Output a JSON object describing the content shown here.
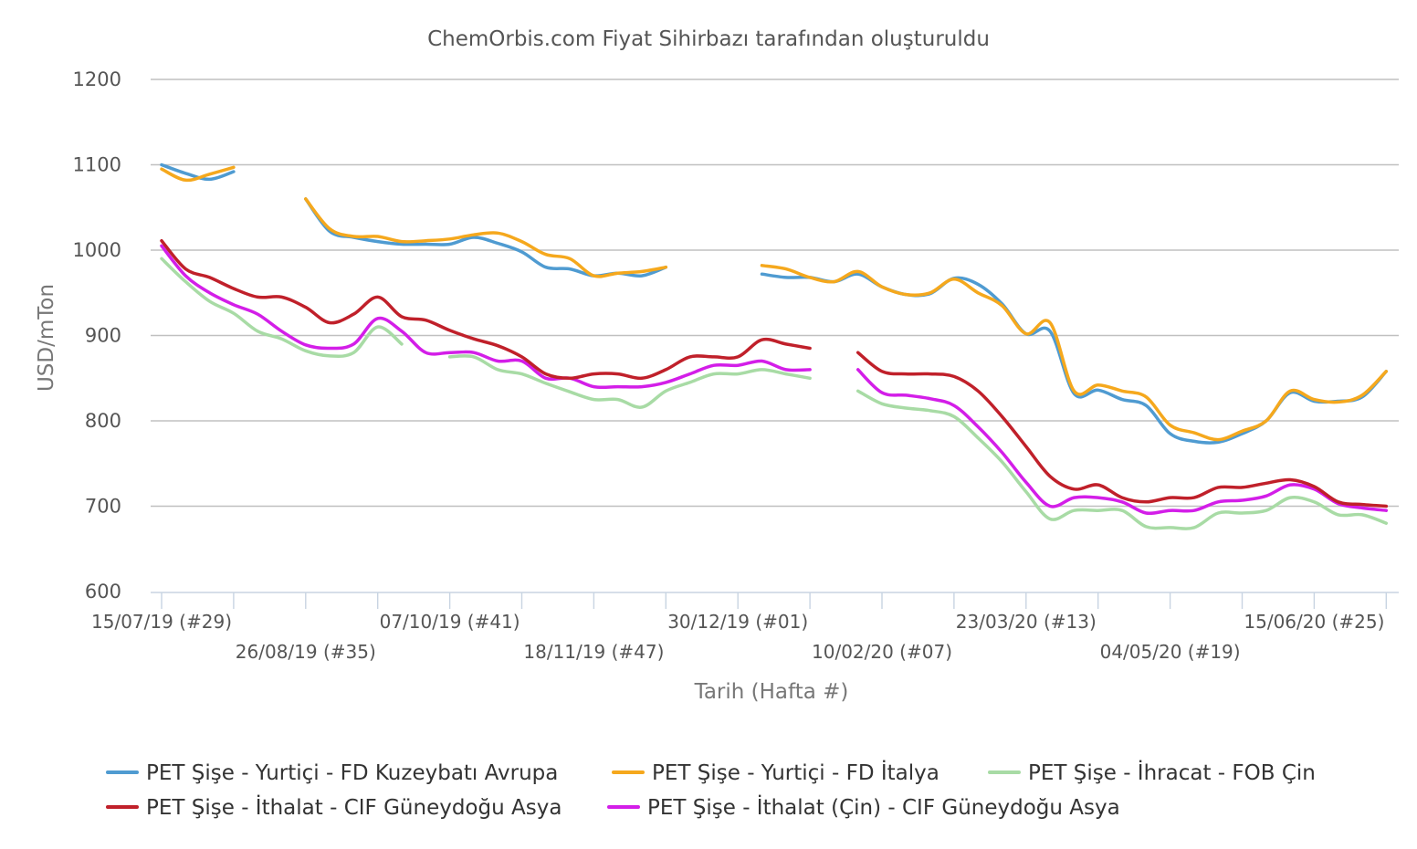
{
  "chart_data": {
    "type": "line",
    "title": "ChemOrbis.com Fiyat Sihirbazı tarafından oluşturuldu",
    "xlabel": "Tarih (Hafta #)",
    "ylabel": "USD/mTon",
    "ylim": [
      600,
      1200
    ],
    "yticks": [
      600,
      700,
      800,
      900,
      1000,
      1100,
      1200
    ],
    "grid": true,
    "legend_position": "bottom",
    "x_start_date": "15/07/19",
    "x_weeks": 52,
    "x_tick_labels": [
      {
        "week": 0,
        "label": "15/07/19 (#29)",
        "row": 0
      },
      {
        "week": 6,
        "label": "26/08/19 (#35)",
        "row": 1
      },
      {
        "week": 12,
        "label": "07/10/19 (#41)",
        "row": 0
      },
      {
        "week": 18,
        "label": "18/11/19 (#47)",
        "row": 1
      },
      {
        "week": 24,
        "label": "30/12/19 (#01)",
        "row": 0
      },
      {
        "week": 30,
        "label": "10/02/20 (#07)",
        "row": 1
      },
      {
        "week": 36,
        "label": "23/03/20 (#13)",
        "row": 0
      },
      {
        "week": 42,
        "label": "04/05/20 (#19)",
        "row": 1
      },
      {
        "week": 48,
        "label": "15/06/20 (#25)",
        "row": 0
      }
    ],
    "series": [
      {
        "name": "PET Şişe - Yurtiçi - FD Kuzeybatı Avrupa",
        "color": "#4f9bd1",
        "points": [
          [
            0,
            1100
          ],
          [
            1,
            1090
          ],
          [
            2,
            1083
          ],
          [
            3,
            1092
          ],
          [
            6,
            1060
          ],
          [
            7,
            1022
          ],
          [
            8,
            1015
          ],
          [
            9,
            1010
          ],
          [
            10,
            1007
          ],
          [
            11,
            1007
          ],
          [
            12,
            1007
          ],
          [
            13,
            1015
          ],
          [
            14,
            1008
          ],
          [
            15,
            998
          ],
          [
            16,
            980
          ],
          [
            17,
            978
          ],
          [
            18,
            970
          ],
          [
            19,
            973
          ],
          [
            20,
            970
          ],
          [
            21,
            980
          ],
          [
            25,
            972
          ],
          [
            26,
            968
          ],
          [
            27,
            968
          ],
          [
            28,
            963
          ],
          [
            29,
            972
          ],
          [
            30,
            957
          ],
          [
            31,
            948
          ],
          [
            32,
            949
          ],
          [
            33,
            967
          ],
          [
            34,
            960
          ],
          [
            35,
            937
          ],
          [
            36,
            902
          ],
          [
            37,
            905
          ],
          [
            38,
            832
          ],
          [
            39,
            836
          ],
          [
            40,
            825
          ],
          [
            41,
            818
          ],
          [
            42,
            785
          ],
          [
            43,
            776
          ],
          [
            44,
            775
          ],
          [
            45,
            785
          ],
          [
            46,
            800
          ],
          [
            47,
            833
          ],
          [
            48,
            823
          ],
          [
            49,
            823
          ],
          [
            50,
            828
          ],
          [
            51,
            858
          ]
        ]
      },
      {
        "name": "PET Şişe - Yurtiçi - FD İtalya",
        "color": "#f5a81d",
        "points": [
          [
            0,
            1095
          ],
          [
            1,
            1082
          ],
          [
            2,
            1089
          ],
          [
            3,
            1097
          ],
          [
            6,
            1060
          ],
          [
            7,
            1025
          ],
          [
            8,
            1016
          ],
          [
            9,
            1016
          ],
          [
            10,
            1010
          ],
          [
            11,
            1011
          ],
          [
            12,
            1013
          ],
          [
            13,
            1018
          ],
          [
            14,
            1020
          ],
          [
            15,
            1010
          ],
          [
            16,
            995
          ],
          [
            17,
            990
          ],
          [
            18,
            970
          ],
          [
            19,
            973
          ],
          [
            20,
            975
          ],
          [
            21,
            980
          ],
          [
            25,
            982
          ],
          [
            26,
            978
          ],
          [
            27,
            968
          ],
          [
            28,
            963
          ],
          [
            29,
            975
          ],
          [
            30,
            957
          ],
          [
            31,
            948
          ],
          [
            32,
            950
          ],
          [
            33,
            966
          ],
          [
            34,
            950
          ],
          [
            35,
            935
          ],
          [
            36,
            902
          ],
          [
            37,
            915
          ],
          [
            38,
            835
          ],
          [
            39,
            842
          ],
          [
            40,
            835
          ],
          [
            41,
            828
          ],
          [
            42,
            795
          ],
          [
            43,
            786
          ],
          [
            44,
            778
          ],
          [
            45,
            788
          ],
          [
            46,
            800
          ],
          [
            47,
            835
          ],
          [
            48,
            825
          ],
          [
            49,
            822
          ],
          [
            50,
            830
          ],
          [
            51,
            858
          ]
        ]
      },
      {
        "name": "PET Şişe - İhracat - FOB Çin",
        "color": "#a8dba5",
        "points": [
          [
            0,
            990
          ],
          [
            1,
            963
          ],
          [
            2,
            940
          ],
          [
            3,
            926
          ],
          [
            4,
            905
          ],
          [
            5,
            896
          ],
          [
            6,
            882
          ],
          [
            7,
            876
          ],
          [
            8,
            880
          ],
          [
            9,
            910
          ],
          [
            10,
            890
          ],
          [
            12,
            875
          ],
          [
            13,
            875
          ],
          [
            14,
            860
          ],
          [
            15,
            855
          ],
          [
            16,
            844
          ],
          [
            17,
            834
          ],
          [
            18,
            825
          ],
          [
            19,
            825
          ],
          [
            20,
            816
          ],
          [
            21,
            835
          ],
          [
            22,
            845
          ],
          [
            23,
            855
          ],
          [
            24,
            855
          ],
          [
            25,
            860
          ],
          [
            26,
            855
          ],
          [
            27,
            850
          ],
          [
            29,
            835
          ],
          [
            30,
            820
          ],
          [
            31,
            815
          ],
          [
            32,
            812
          ],
          [
            33,
            805
          ],
          [
            34,
            780
          ],
          [
            35,
            752
          ],
          [
            36,
            717
          ],
          [
            37,
            685
          ],
          [
            38,
            695
          ],
          [
            39,
            695
          ],
          [
            40,
            695
          ],
          [
            41,
            676
          ],
          [
            42,
            675
          ],
          [
            43,
            675
          ],
          [
            44,
            692
          ],
          [
            45,
            692
          ],
          [
            46,
            695
          ],
          [
            47,
            710
          ],
          [
            48,
            705
          ],
          [
            49,
            690
          ],
          [
            50,
            690
          ],
          [
            51,
            680
          ]
        ]
      },
      {
        "name": "PET Şişe - İthalat - CIF Güneydoğu Asya",
        "color": "#c0202a",
        "points": [
          [
            0,
            1011
          ],
          [
            1,
            978
          ],
          [
            2,
            968
          ],
          [
            3,
            955
          ],
          [
            4,
            945
          ],
          [
            5,
            945
          ],
          [
            6,
            933
          ],
          [
            7,
            915
          ],
          [
            8,
            925
          ],
          [
            9,
            945
          ],
          [
            10,
            922
          ],
          [
            11,
            918
          ],
          [
            12,
            906
          ],
          [
            13,
            896
          ],
          [
            14,
            888
          ],
          [
            15,
            875
          ],
          [
            16,
            855
          ],
          [
            17,
            850
          ],
          [
            18,
            855
          ],
          [
            19,
            855
          ],
          [
            20,
            850
          ],
          [
            21,
            860
          ],
          [
            22,
            875
          ],
          [
            23,
            875
          ],
          [
            24,
            875
          ],
          [
            25,
            895
          ],
          [
            26,
            890
          ],
          [
            27,
            885
          ],
          [
            29,
            880
          ],
          [
            30,
            858
          ],
          [
            31,
            855
          ],
          [
            32,
            855
          ],
          [
            33,
            852
          ],
          [
            34,
            835
          ],
          [
            35,
            805
          ],
          [
            36,
            770
          ],
          [
            37,
            735
          ],
          [
            38,
            720
          ],
          [
            39,
            725
          ],
          [
            40,
            710
          ],
          [
            41,
            705
          ],
          [
            42,
            710
          ],
          [
            43,
            710
          ],
          [
            44,
            722
          ],
          [
            45,
            722
          ],
          [
            46,
            727
          ],
          [
            47,
            731
          ],
          [
            48,
            723
          ],
          [
            49,
            705
          ],
          [
            50,
            702
          ],
          [
            51,
            700
          ]
        ]
      },
      {
        "name": "PET Şişe - İthalat (Çin) - CIF Güneydoğu Asya",
        "color": "#d31ee8",
        "points": [
          [
            0,
            1005
          ],
          [
            1,
            970
          ],
          [
            2,
            950
          ],
          [
            3,
            936
          ],
          [
            4,
            925
          ],
          [
            5,
            905
          ],
          [
            6,
            889
          ],
          [
            7,
            885
          ],
          [
            8,
            890
          ],
          [
            9,
            920
          ],
          [
            10,
            905
          ],
          [
            11,
            880
          ],
          [
            12,
            880
          ],
          [
            13,
            880
          ],
          [
            14,
            870
          ],
          [
            15,
            870
          ],
          [
            16,
            850
          ],
          [
            17,
            850
          ],
          [
            18,
            840
          ],
          [
            19,
            840
          ],
          [
            20,
            840
          ],
          [
            21,
            845
          ],
          [
            22,
            855
          ],
          [
            23,
            865
          ],
          [
            24,
            865
          ],
          [
            25,
            870
          ],
          [
            26,
            860
          ],
          [
            27,
            860
          ],
          [
            29,
            860
          ],
          [
            30,
            833
          ],
          [
            31,
            830
          ],
          [
            32,
            826
          ],
          [
            33,
            818
          ],
          [
            34,
            793
          ],
          [
            35,
            763
          ],
          [
            36,
            728
          ],
          [
            37,
            700
          ],
          [
            38,
            710
          ],
          [
            39,
            710
          ],
          [
            40,
            705
          ],
          [
            41,
            692
          ],
          [
            42,
            695
          ],
          [
            43,
            695
          ],
          [
            44,
            705
          ],
          [
            45,
            707
          ],
          [
            46,
            712
          ],
          [
            47,
            725
          ],
          [
            48,
            720
          ],
          [
            49,
            703
          ],
          [
            50,
            698
          ],
          [
            51,
            695
          ]
        ]
      }
    ]
  }
}
